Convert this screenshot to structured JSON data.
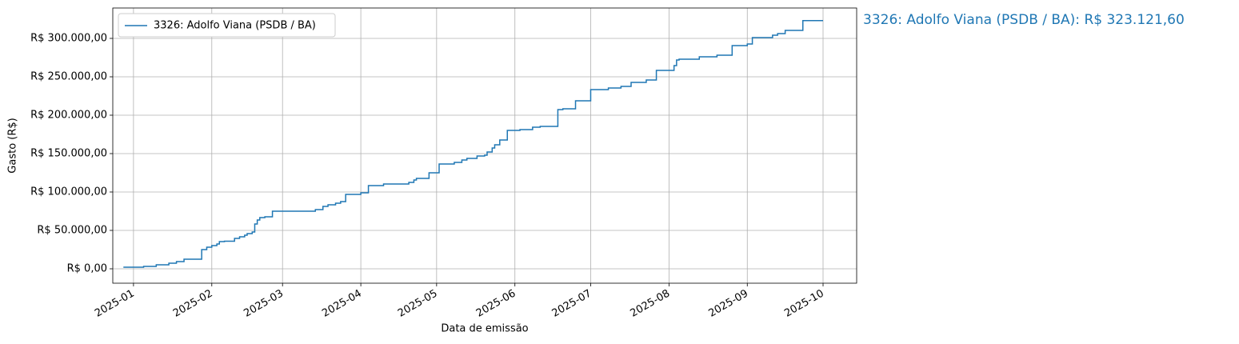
{
  "chart_data": {
    "type": "step",
    "xlabel": "Data de emissão",
    "ylabel": "Gasto (R$)",
    "annotation": "3326: Adolfo Viana (PSDB / BA): R$ 323.121,60",
    "legend": "upper left",
    "grid": true,
    "x": [
      -4,
      4,
      9,
      14,
      17,
      20,
      27,
      29,
      31,
      33,
      34,
      36,
      40,
      42,
      44,
      45,
      47,
      48,
      49,
      50,
      52,
      55,
      72,
      75,
      77,
      80,
      82,
      84,
      90,
      93,
      99,
      109,
      111,
      112,
      117,
      121,
      127,
      130,
      132,
      136,
      139,
      140,
      142,
      143,
      145,
      148,
      153,
      158,
      161,
      168,
      170,
      175,
      181,
      188,
      193,
      197,
      203,
      207,
      214,
      215,
      216,
      224,
      231,
      237,
      243,
      245,
      253,
      255,
      258,
      265,
      273
    ],
    "xlim": [
      -8.2,
      286.3
    ],
    "xticks": [
      {
        "value": 0,
        "label": "2025-01"
      },
      {
        "value": 31,
        "label": "2025-02"
      },
      {
        "value": 59,
        "label": "2025-03"
      },
      {
        "value": 90,
        "label": "2025-04"
      },
      {
        "value": 120,
        "label": "2025-05"
      },
      {
        "value": 151,
        "label": "2025-06"
      },
      {
        "value": 181,
        "label": "2025-07"
      },
      {
        "value": 212,
        "label": "2025-08"
      },
      {
        "value": 243,
        "label": "2025-09"
      },
      {
        "value": 273,
        "label": "2025-10"
      }
    ],
    "ylim": [
      -18750,
      339583
    ],
    "yticks": [
      {
        "value": 0,
        "label": "R$ 0,00"
      },
      {
        "value": 50000,
        "label": "R$ 50.000,00"
      },
      {
        "value": 100000,
        "label": "R$ 100.000,00"
      },
      {
        "value": 150000,
        "label": "R$ 150.000,00"
      },
      {
        "value": 200000,
        "label": "R$ 200.000,00"
      },
      {
        "value": 250000,
        "label": "R$ 250.000,00"
      },
      {
        "value": 300000,
        "label": "R$ 300.000,00"
      }
    ],
    "series": [
      {
        "name": "3326: Adolfo Viana (PSDB / BA)",
        "color": "#1f77b4",
        "values": [
          2100,
          3100,
          5200,
          7300,
          9400,
          12500,
          25000,
          28100,
          30200,
          32300,
          35400,
          36000,
          39600,
          41700,
          43800,
          45800,
          47900,
          58300,
          63500,
          66700,
          67700,
          75000,
          77100,
          81300,
          83300,
          85400,
          87500,
          96900,
          99000,
          108300,
          110400,
          112500,
          115600,
          117700,
          125000,
          136500,
          138500,
          141700,
          143800,
          146900,
          147900,
          152100,
          157300,
          161500,
          167700,
          180200,
          181300,
          184400,
          185400,
          207300,
          208300,
          218800,
          233300,
          235400,
          237500,
          242700,
          245800,
          258300,
          264600,
          271900,
          272900,
          276000,
          278100,
          290600,
          292700,
          301000,
          304200,
          306300,
          310400,
          323121.6,
          323121.6
        ]
      }
    ]
  }
}
